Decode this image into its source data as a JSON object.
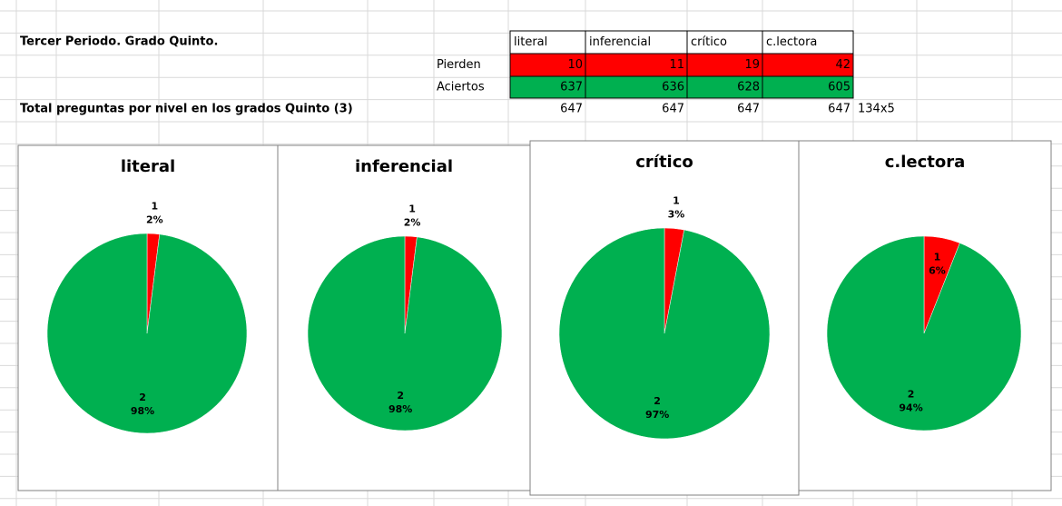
{
  "sheet": {
    "title": "Tercer  Periodo. Grado Quinto.",
    "headers": [
      "literal",
      "inferencial",
      "crítico",
      "c.lectora"
    ],
    "rows": [
      {
        "label": "Pierden",
        "values": [
          10,
          11,
          19,
          42
        ]
      },
      {
        "label": "Aciertos",
        "values": [
          637,
          636,
          628,
          605
        ]
      }
    ],
    "total": {
      "label": "Total preguntas por nivel en los grados Quinto (3)",
      "values": [
        647,
        647,
        647,
        647
      ],
      "note": "134x5"
    }
  },
  "chart_data": [
    {
      "type": "pie",
      "title": "literal",
      "categories": [
        "1",
        "2"
      ],
      "values": [
        2,
        98
      ],
      "value_labels": [
        "2%",
        "98%"
      ],
      "colors": [
        "#ff0000",
        "#00b050"
      ]
    },
    {
      "type": "pie",
      "title": "inferencial",
      "categories": [
        "1",
        "2"
      ],
      "values": [
        2,
        98
      ],
      "value_labels": [
        "2%",
        "98%"
      ],
      "colors": [
        "#ff0000",
        "#00b050"
      ]
    },
    {
      "type": "pie",
      "title": "crítico",
      "categories": [
        "1",
        "2"
      ],
      "values": [
        3,
        97
      ],
      "value_labels": [
        "3%",
        "97%"
      ],
      "colors": [
        "#ff0000",
        "#00b050"
      ]
    },
    {
      "type": "pie",
      "title": "c.lectora",
      "categories": [
        "1",
        "2"
      ],
      "values": [
        6,
        94
      ],
      "value_labels": [
        "6%",
        "94%"
      ],
      "colors": [
        "#ff0000",
        "#00b050"
      ]
    }
  ]
}
